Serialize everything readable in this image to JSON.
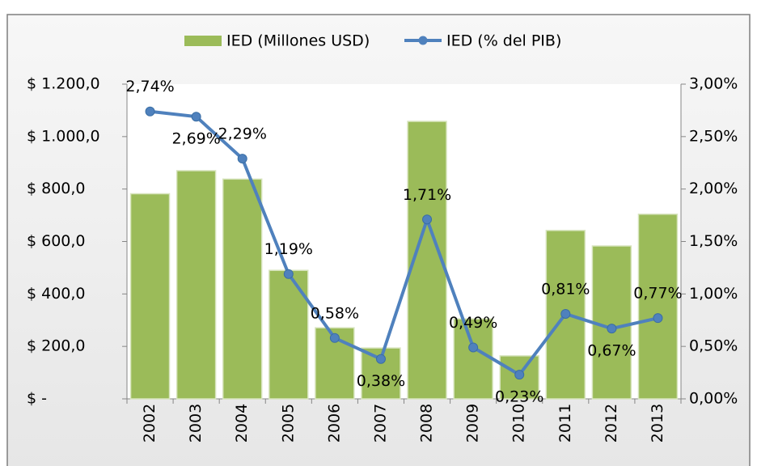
{
  "chart_data": {
    "type": "bar_line",
    "categories": [
      "2002",
      "2003",
      "2004",
      "2005",
      "2006",
      "2007",
      "2008",
      "2009",
      "2010",
      "2011",
      "2012",
      "2013"
    ],
    "series": [
      {
        "name": "IED (Millones USD)",
        "type": "bar",
        "color": "#9bbb59",
        "values": [
          782,
          870,
          838,
          490,
          271,
          194,
          1058,
          305,
          164,
          642,
          583,
          704
        ]
      },
      {
        "name": "IED (% del PIB)",
        "type": "line",
        "axis": "y2",
        "color": "#4f81bd",
        "values": [
          2.74,
          2.69,
          2.29,
          1.19,
          0.58,
          0.38,
          1.71,
          0.49,
          0.23,
          0.81,
          0.67,
          0.77
        ],
        "value_labels": [
          "2,74%",
          "2,69%",
          "2,29%",
          "1,19%",
          "0,58%",
          "0,38%",
          "1,71%",
          "0,49%",
          "0,23%",
          "0,81%",
          "0,67%",
          "0,77%"
        ]
      }
    ],
    "ylim": [
      0,
      1200
    ],
    "yticks": [
      {
        "value": 0,
        "label": "$ -"
      },
      {
        "value": 200,
        "label": "$ 200,0"
      },
      {
        "value": 400,
        "label": "$ 400,0"
      },
      {
        "value": 600,
        "label": "$ 600,0"
      },
      {
        "value": 800,
        "label": "$ 800,0"
      },
      {
        "value": 1000,
        "label": "$ 1.000,0"
      },
      {
        "value": 1200,
        "label": "$ 1.200,0"
      }
    ],
    "y2lim": [
      0,
      3
    ],
    "y2ticks": [
      {
        "value": 0,
        "label": "0,00%"
      },
      {
        "value": 0.5,
        "label": "0,50%"
      },
      {
        "value": 1,
        "label": "1,00%"
      },
      {
        "value": 1.5,
        "label": "1,50%"
      },
      {
        "value": 2,
        "label": "2,00%"
      },
      {
        "value": 2.5,
        "label": "2,50%"
      },
      {
        "value": 3,
        "label": "3,00%"
      }
    ],
    "legend": "top"
  }
}
